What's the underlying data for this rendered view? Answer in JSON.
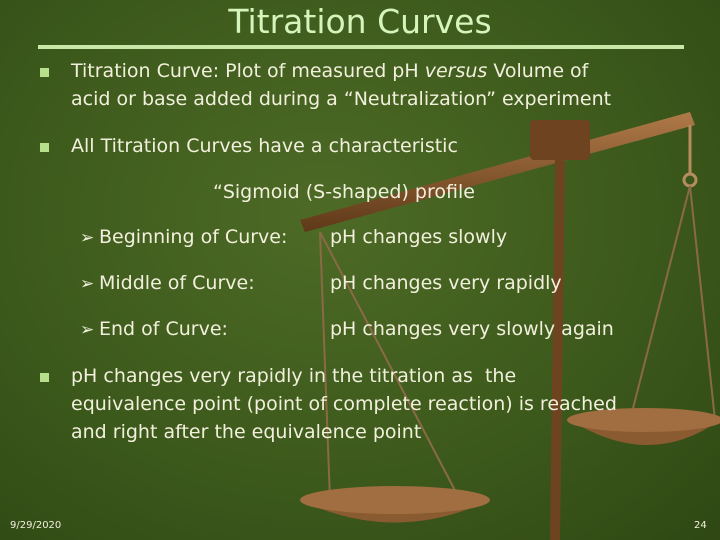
{
  "slide": {
    "title": "Titration Curves",
    "bullets": [
      {
        "lines": [
          [
            "Titration Curve: Plot of measured pH ",
            "versus",
            " Volume of"
          ],
          [
            "acid or base added during a “Neutralization” experiment"
          ]
        ]
      },
      {
        "lines": [
          [
            "All Titration Curves have a characteristic"
          ]
        ],
        "continuation": "“Sigmoid (S-shaped) profile"
      },
      {
        "lines": [
          [
            "pH changes very rapidly in the titration as  the"
          ],
          [
            "equivalence point (point of complete reaction) is reached"
          ],
          [
            "and right after the equivalence point"
          ]
        ]
      }
    ],
    "sub_items": [
      {
        "label": "Beginning of Curve:",
        "description": "pH changes slowly"
      },
      {
        "label": "Middle of Curve:",
        "description": "pH changes very rapidly"
      },
      {
        "label": "End of Curve:",
        "description": "pH changes very slowly again"
      }
    ],
    "date": "9/29/2020",
    "page_number": "24"
  }
}
